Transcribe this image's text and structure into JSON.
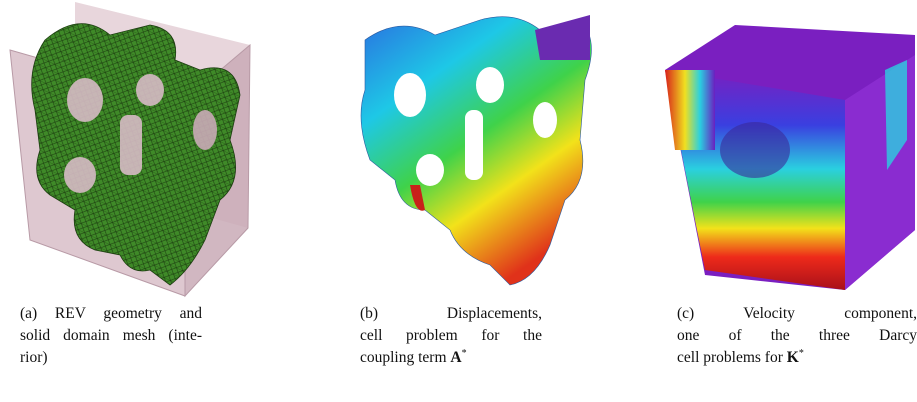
{
  "panels": [
    {
      "lines": [
        "(a) REV geometry and",
        "solid domain mesh (inte-",
        "rior)"
      ]
    },
    {
      "lines": [
        "(b) Displacements,",
        "cell problem for the",
        "coupling term"
      ],
      "math_symbol": "A",
      "math_superscript": "*"
    },
    {
      "lines": [
        "(c) Velocity component,",
        "one of the three Darcy",
        "cell problems for"
      ],
      "math_symbol": "K",
      "math_superscript": "*"
    }
  ]
}
